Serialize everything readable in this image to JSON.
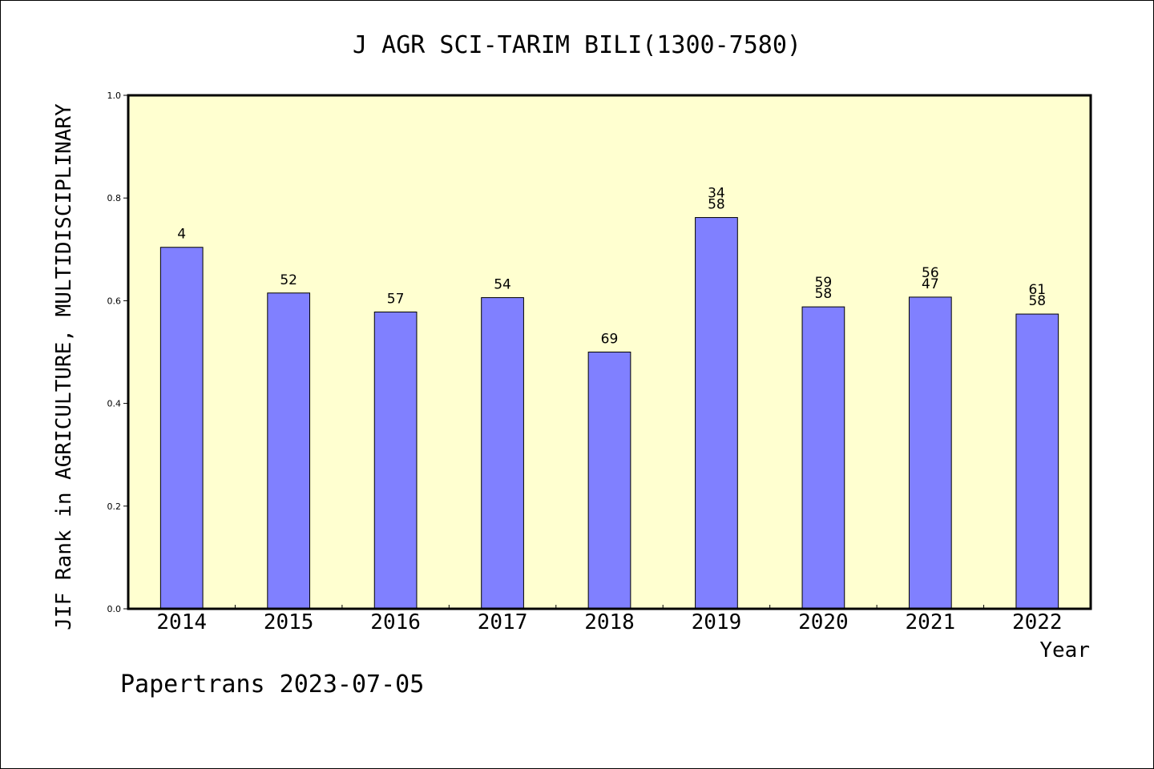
{
  "chart_data": {
    "type": "bar",
    "title": "J AGR SCI-TARIM BILI(1300-7580)",
    "ylabel": "JIF Rank in AGRICULTURE, MULTIDISCIPLINARY",
    "xlabel": "Year",
    "ylim": [
      0,
      1.0
    ],
    "yticks": [
      "0.0",
      "0.2",
      "0.4",
      "0.6",
      "0.8",
      "1.0"
    ],
    "categories": [
      "2014",
      "2015",
      "2016",
      "2017",
      "2018",
      "2019",
      "2020",
      "2021",
      "2022"
    ],
    "values": [
      0.704,
      0.615,
      0.578,
      0.606,
      0.5,
      0.762,
      0.588,
      0.607,
      0.574
    ],
    "rank_labels": [
      [
        "4"
      ],
      [
        "52"
      ],
      [
        "57"
      ],
      [
        "54"
      ],
      [
        "69"
      ],
      [
        "34",
        "58"
      ],
      [
        "59",
        "58"
      ],
      [
        "56",
        "47"
      ],
      [
        "61",
        "58"
      ]
    ],
    "grid": false,
    "colors": {
      "plot_background": "#ffffd0",
      "bar_fill": "#8080ff",
      "bar_stroke": "#000000"
    }
  },
  "footer": "Papertrans 2023-07-05"
}
